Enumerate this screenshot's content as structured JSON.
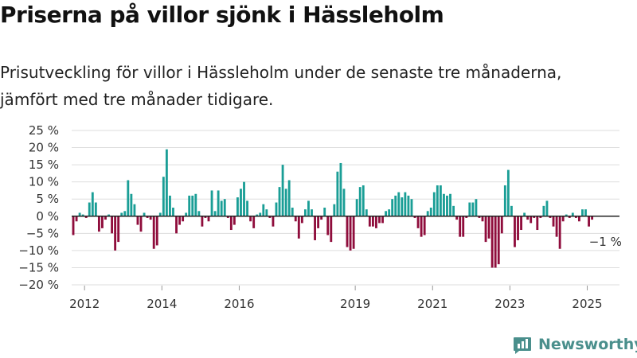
{
  "title": "Priserna på villor sjönk i Hässleholm",
  "subtitle_lines": [
    "Prisutveckling för villor i Hässleholm under de senaste tre månaderna,",
    "jämfört med tre månader tidigare."
  ],
  "logo_text": "Newsworthy",
  "colors": {
    "positive": "#1a9e96",
    "negative": "#8f0d3c",
    "grid": "#dddddd",
    "zero_line": "#222222",
    "logo": "#4a8f8c"
  },
  "chart_data": {
    "type": "bar",
    "ylim": [
      -20,
      25
    ],
    "yticks": [
      25,
      20,
      15,
      10,
      5,
      0,
      -5,
      -10,
      -15,
      -20
    ],
    "ytick_labels": [
      "25 %",
      "20 %",
      "15 %",
      "10 %",
      "5 %",
      "0 %",
      "−5 %",
      "−10 %",
      "−15 %",
      "−20 %"
    ],
    "xticks": [
      "2012",
      "2014",
      "2016",
      "2019",
      "2021",
      "2023",
      "2025"
    ],
    "x_range": [
      "2011-09",
      "2025-10"
    ],
    "grid": true,
    "annotation": {
      "text": "−1 %",
      "date": "2025-04",
      "value": -1
    },
    "series": [
      {
        "values": [
          [
            "2011-09",
            -5.5
          ],
          [
            "2011-10",
            -1.5
          ],
          [
            "2011-11",
            1.0
          ],
          [
            "2011-12",
            0.5
          ],
          [
            "2012-01",
            -0.5
          ],
          [
            "2012-02",
            4.0
          ],
          [
            "2012-03",
            7.0
          ],
          [
            "2012-04",
            4.0
          ],
          [
            "2012-05",
            -4.5
          ],
          [
            "2012-06",
            -3.5
          ],
          [
            "2012-07",
            -1.0
          ],
          [
            "2012-08",
            0.5
          ],
          [
            "2012-09",
            -5.0
          ],
          [
            "2012-10",
            -10.0
          ],
          [
            "2012-11",
            -7.5
          ],
          [
            "2012-12",
            1.0
          ],
          [
            "2013-01",
            1.5
          ],
          [
            "2013-02",
            10.5
          ],
          [
            "2013-03",
            6.5
          ],
          [
            "2013-04",
            3.5
          ],
          [
            "2013-05",
            -2.5
          ],
          [
            "2013-06",
            -4.5
          ],
          [
            "2013-07",
            1.0
          ],
          [
            "2013-08",
            -0.5
          ],
          [
            "2013-09",
            -1.0
          ],
          [
            "2013-10",
            -9.5
          ],
          [
            "2013-11",
            -8.5
          ],
          [
            "2013-12",
            1.0
          ],
          [
            "2014-01",
            11.5
          ],
          [
            "2014-02",
            19.5
          ],
          [
            "2014-03",
            6.0
          ],
          [
            "2014-04",
            2.5
          ],
          [
            "2014-05",
            -5.0
          ],
          [
            "2014-06",
            -2.5
          ],
          [
            "2014-07",
            -1.5
          ],
          [
            "2014-08",
            1.0
          ],
          [
            "2014-09",
            6.0
          ],
          [
            "2014-10",
            6.0
          ],
          [
            "2014-11",
            6.5
          ],
          [
            "2014-12",
            1.5
          ],
          [
            "2015-01",
            -3.0
          ],
          [
            "2015-02",
            -0.5
          ],
          [
            "2015-03",
            -1.5
          ],
          [
            "2015-04",
            7.5
          ],
          [
            "2015-05",
            1.5
          ],
          [
            "2015-06",
            7.5
          ],
          [
            "2015-07",
            4.5
          ],
          [
            "2015-08",
            5.0
          ],
          [
            "2015-09",
            -0.5
          ],
          [
            "2015-10",
            -4.0
          ],
          [
            "2015-11",
            -2.5
          ],
          [
            "2015-12",
            5.5
          ],
          [
            "2016-01",
            8.0
          ],
          [
            "2016-02",
            10.0
          ],
          [
            "2016-03",
            4.5
          ],
          [
            "2016-04",
            -1.5
          ],
          [
            "2016-05",
            -3.5
          ],
          [
            "2016-06",
            0.5
          ],
          [
            "2016-07",
            1.0
          ],
          [
            "2016-08",
            3.5
          ],
          [
            "2016-09",
            2.0
          ],
          [
            "2016-10",
            -0.5
          ],
          [
            "2016-11",
            -3.0
          ],
          [
            "2016-12",
            4.0
          ],
          [
            "2017-01",
            8.5
          ],
          [
            "2017-02",
            15.0
          ],
          [
            "2017-03",
            8.0
          ],
          [
            "2017-04",
            10.5
          ],
          [
            "2017-05",
            2.5
          ],
          [
            "2017-06",
            -1.5
          ],
          [
            "2017-07",
            -6.5
          ],
          [
            "2017-08",
            -2.0
          ],
          [
            "2017-09",
            2.0
          ],
          [
            "2017-10",
            4.5
          ],
          [
            "2017-11",
            2.0
          ],
          [
            "2017-12",
            -7.0
          ],
          [
            "2018-01",
            -3.5
          ],
          [
            "2018-02",
            -1.0
          ],
          [
            "2018-03",
            2.5
          ],
          [
            "2018-04",
            -5.5
          ],
          [
            "2018-05",
            -7.5
          ],
          [
            "2018-06",
            3.5
          ],
          [
            "2018-07",
            13.0
          ],
          [
            "2018-08",
            15.5
          ],
          [
            "2018-09",
            8.0
          ],
          [
            "2018-10",
            -9.0
          ],
          [
            "2018-11",
            -10.0
          ],
          [
            "2018-12",
            -9.5
          ],
          [
            "2019-01",
            5.0
          ],
          [
            "2019-02",
            8.5
          ],
          [
            "2019-03",
            9.0
          ],
          [
            "2019-04",
            2.0
          ],
          [
            "2019-05",
            -3.0
          ],
          [
            "2019-06",
            -3.0
          ],
          [
            "2019-07",
            -3.5
          ],
          [
            "2019-08",
            -2.0
          ],
          [
            "2019-09",
            -2.0
          ],
          [
            "2019-10",
            1.5
          ],
          [
            "2019-11",
            2.0
          ],
          [
            "2019-12",
            5.0
          ],
          [
            "2020-01",
            6.0
          ],
          [
            "2020-02",
            7.0
          ],
          [
            "2020-03",
            5.5
          ],
          [
            "2020-04",
            7.0
          ],
          [
            "2020-05",
            6.0
          ],
          [
            "2020-06",
            5.0
          ],
          [
            "2020-07",
            -0.5
          ],
          [
            "2020-08",
            -3.5
          ],
          [
            "2020-09",
            -6.0
          ],
          [
            "2020-10",
            -5.5
          ],
          [
            "2020-11",
            1.5
          ],
          [
            "2020-12",
            2.5
          ],
          [
            "2021-01",
            7.0
          ],
          [
            "2021-02",
            9.0
          ],
          [
            "2021-03",
            9.0
          ],
          [
            "2021-04",
            6.5
          ],
          [
            "2021-05",
            6.0
          ],
          [
            "2021-06",
            6.5
          ],
          [
            "2021-07",
            3.0
          ],
          [
            "2021-08",
            -1.0
          ],
          [
            "2021-09",
            -6.0
          ],
          [
            "2021-10",
            -6.0
          ],
          [
            "2021-11",
            -0.5
          ],
          [
            "2021-12",
            4.0
          ],
          [
            "2022-01",
            4.0
          ],
          [
            "2022-02",
            5.0
          ],
          [
            "2022-03",
            -0.5
          ],
          [
            "2022-04",
            -1.5
          ],
          [
            "2022-05",
            -7.5
          ],
          [
            "2022-06",
            -6.5
          ],
          [
            "2022-07",
            -15.0
          ],
          [
            "2022-08",
            -15.0
          ],
          [
            "2022-09",
            -14.0
          ],
          [
            "2022-10",
            -5.0
          ],
          [
            "2022-11",
            9.0
          ],
          [
            "2022-12",
            13.5
          ],
          [
            "2023-01",
            3.0
          ],
          [
            "2023-02",
            -9.0
          ],
          [
            "2023-03",
            -7.0
          ],
          [
            "2023-04",
            -4.0
          ],
          [
            "2023-05",
            1.0
          ],
          [
            "2023-06",
            -1.0
          ],
          [
            "2023-07",
            -2.0
          ],
          [
            "2023-08",
            -0.5
          ],
          [
            "2023-09",
            -4.0
          ],
          [
            "2023-10",
            -0.5
          ],
          [
            "2023-11",
            3.0
          ],
          [
            "2023-12",
            4.5
          ],
          [
            "2024-01",
            -0.5
          ],
          [
            "2024-02",
            -3.0
          ],
          [
            "2024-03",
            -6.0
          ],
          [
            "2024-04",
            -9.5
          ],
          [
            "2024-05",
            -1.5
          ],
          [
            "2024-06",
            0.5
          ],
          [
            "2024-07",
            -0.5
          ],
          [
            "2024-08",
            1.0
          ],
          [
            "2024-09",
            -0.5
          ],
          [
            "2024-10",
            -1.5
          ],
          [
            "2024-11",
            2.0
          ],
          [
            "2024-12",
            2.0
          ],
          [
            "2025-01",
            -3.0
          ],
          [
            "2025-02",
            -1.0
          ]
        ]
      }
    ]
  }
}
